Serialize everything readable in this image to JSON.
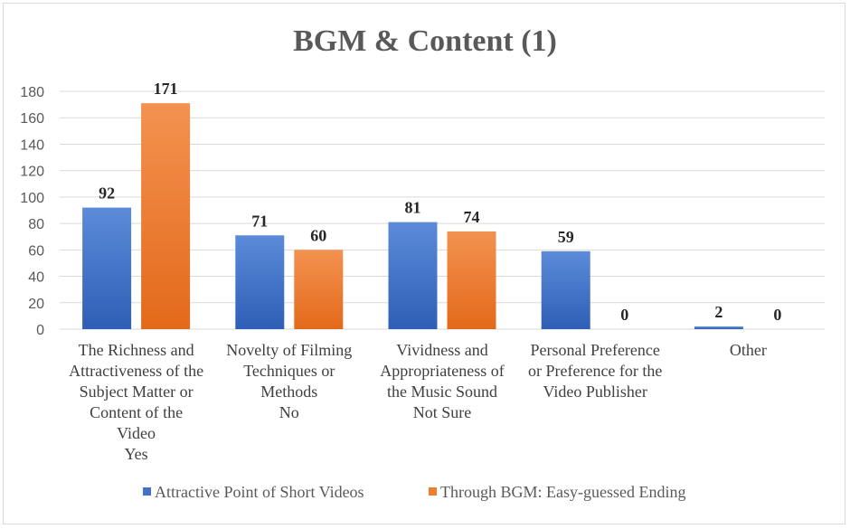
{
  "chart_data": {
    "type": "bar",
    "title": "BGM & Content (1)",
    "categories": [
      [
        "The Richness and",
        "Attractiveness of the",
        "Subject Matter or",
        "Content of the",
        "Video",
        "Yes"
      ],
      [
        "Novelty of Filming",
        "Techniques or",
        "Methods",
        "No"
      ],
      [
        "Vividness and",
        "Appropriateness of",
        "the Music  Sound",
        "Not Sure"
      ],
      [
        "Personal Preference",
        "or Preference for the",
        "Video Publisher"
      ],
      [
        "Other"
      ]
    ],
    "series": [
      {
        "name": "Attractive Point of Short Videos",
        "values": [
          92,
          71,
          81,
          59,
          2
        ],
        "color": "#4472c4"
      },
      {
        "name": "Through BGM: Easy-guessed Ending",
        "values": [
          171,
          60,
          74,
          0,
          0
        ],
        "color": "#ed7d31"
      }
    ],
    "ylim": [
      0,
      180
    ],
    "yticks": [
      "0",
      "20",
      "40",
      "60",
      "80",
      "100",
      "120",
      "140",
      "160",
      "180"
    ],
    "grid": true,
    "legend_position": "bottom",
    "xlabel": "",
    "ylabel": ""
  }
}
